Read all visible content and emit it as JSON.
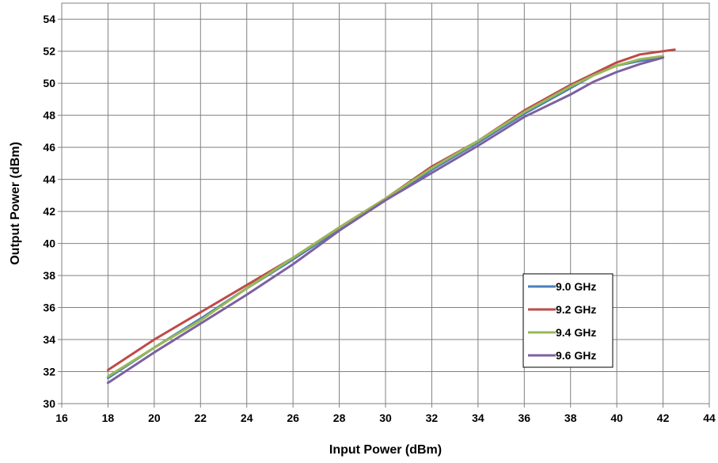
{
  "chart_data": {
    "type": "line",
    "title": "",
    "xlabel": "Input Power (dBm)",
    "ylabel": "Output Power (dBm)",
    "xlim": [
      16,
      44
    ],
    "ylim": [
      30,
      55
    ],
    "xticks": [
      16,
      18,
      20,
      22,
      24,
      26,
      28,
      30,
      32,
      34,
      36,
      38,
      40,
      42,
      44
    ],
    "yticks": [
      30,
      32,
      34,
      36,
      38,
      40,
      42,
      44,
      46,
      48,
      50,
      52,
      54
    ],
    "grid": true,
    "legend_position": "bottom-right",
    "series": [
      {
        "name": "9.0 GHz",
        "color": "#4a7ebb",
        "x": [
          18,
          20,
          22,
          24,
          26,
          28,
          30,
          32,
          34,
          36,
          38,
          39,
          40,
          41,
          42
        ],
        "y": [
          31.6,
          33.5,
          35.3,
          37.2,
          39.0,
          40.9,
          42.7,
          44.6,
          46.3,
          48.1,
          49.7,
          50.5,
          51.1,
          51.4,
          51.6
        ]
      },
      {
        "name": "9.2 GHz",
        "color": "#be4b48",
        "x": [
          18,
          20,
          22,
          24,
          26,
          28,
          30,
          32,
          34,
          36,
          38,
          39,
          40,
          41,
          42,
          42.5
        ],
        "y": [
          32.1,
          34.0,
          35.7,
          37.4,
          39.1,
          41.0,
          42.8,
          44.8,
          46.4,
          48.3,
          49.9,
          50.6,
          51.3,
          51.8,
          52.0,
          52.1
        ]
      },
      {
        "name": "9.4 GHz",
        "color": "#98b954",
        "x": [
          18,
          20,
          22,
          24,
          26,
          28,
          30,
          32,
          34,
          36,
          38,
          39,
          40,
          41,
          42
        ],
        "y": [
          31.7,
          33.5,
          35.2,
          37.2,
          39.1,
          41.0,
          42.8,
          44.7,
          46.4,
          48.2,
          49.8,
          50.5,
          51.1,
          51.5,
          51.7
        ]
      },
      {
        "name": "9.6 GHz",
        "color": "#7d60a0",
        "x": [
          18,
          20,
          22,
          24,
          26,
          28,
          30,
          32,
          34,
          36,
          38,
          39,
          40,
          41,
          42
        ],
        "y": [
          31.3,
          33.2,
          35.0,
          36.8,
          38.7,
          40.8,
          42.7,
          44.4,
          46.1,
          47.9,
          49.3,
          50.1,
          50.7,
          51.2,
          51.6
        ]
      }
    ]
  }
}
